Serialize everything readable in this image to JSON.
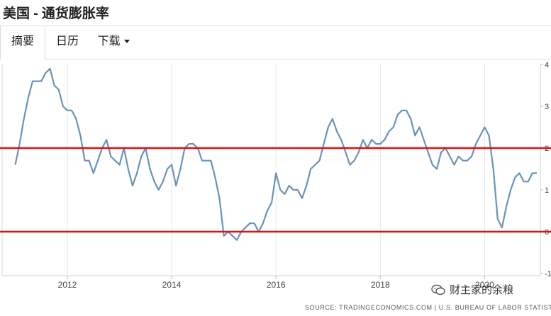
{
  "page": {
    "title": "美国 - 通货膨胀率",
    "tabs": [
      {
        "label": "摘要",
        "active": true
      },
      {
        "label": "日历",
        "active": false
      },
      {
        "label": "下载",
        "active": false
      }
    ],
    "source": "SOURCE: TRADINGECONOMICS.COM | U.S. BUREAU OF LABOR STATISTICS",
    "watermark": "财主家的余粮"
  },
  "colors": {
    "line": "#6a93b8",
    "reference_line": "#e01010",
    "grid": "#e6e6e6"
  },
  "chart_data": {
    "type": "line",
    "title": "",
    "xlabel": "",
    "ylabel": "",
    "x_tick_labels": [
      "2012",
      "2014",
      "2016",
      "2018",
      "2020"
    ],
    "y_tick_labels": [
      "-1",
      "0",
      "1",
      "2",
      "3",
      "4"
    ],
    "ylim": [
      -1,
      4
    ],
    "xlim": [
      "2011-01",
      "2020-07"
    ],
    "grid": "vertical",
    "reference_lines": [
      2,
      0
    ],
    "series": [
      {
        "values": [
          [
            "2011-01",
            1.6
          ],
          [
            "2011-02",
            2.1
          ],
          [
            "2011-03",
            2.7
          ],
          [
            "2011-04",
            3.2
          ],
          [
            "2011-05",
            3.6
          ],
          [
            "2011-06",
            3.6
          ],
          [
            "2011-07",
            3.6
          ],
          [
            "2011-08",
            3.8
          ],
          [
            "2011-09",
            3.9
          ],
          [
            "2011-10",
            3.5
          ],
          [
            "2011-11",
            3.4
          ],
          [
            "2011-12",
            3.0
          ],
          [
            "2012-01",
            2.9
          ],
          [
            "2012-02",
            2.9
          ],
          [
            "2012-03",
            2.7
          ],
          [
            "2012-04",
            2.3
          ],
          [
            "2012-05",
            1.7
          ],
          [
            "2012-06",
            1.7
          ],
          [
            "2012-07",
            1.4
          ],
          [
            "2012-08",
            1.7
          ],
          [
            "2012-09",
            2.0
          ],
          [
            "2012-10",
            2.2
          ],
          [
            "2012-11",
            1.8
          ],
          [
            "2012-12",
            1.7
          ],
          [
            "2013-01",
            1.6
          ],
          [
            "2013-02",
            2.0
          ],
          [
            "2013-03",
            1.5
          ],
          [
            "2013-04",
            1.1
          ],
          [
            "2013-05",
            1.4
          ],
          [
            "2013-06",
            1.8
          ],
          [
            "2013-07",
            2.0
          ],
          [
            "2013-08",
            1.5
          ],
          [
            "2013-09",
            1.2
          ],
          [
            "2013-10",
            1.0
          ],
          [
            "2013-11",
            1.2
          ],
          [
            "2013-12",
            1.5
          ],
          [
            "2014-01",
            1.6
          ],
          [
            "2014-02",
            1.1
          ],
          [
            "2014-03",
            1.5
          ],
          [
            "2014-04",
            2.0
          ],
          [
            "2014-05",
            2.1
          ],
          [
            "2014-06",
            2.1
          ],
          [
            "2014-07",
            2.0
          ],
          [
            "2014-08",
            1.7
          ],
          [
            "2014-09",
            1.7
          ],
          [
            "2014-10",
            1.7
          ],
          [
            "2014-11",
            1.3
          ],
          [
            "2014-12",
            0.8
          ],
          [
            "2015-01",
            -0.1
          ],
          [
            "2015-02",
            0.0
          ],
          [
            "2015-03",
            -0.1
          ],
          [
            "2015-04",
            -0.2
          ],
          [
            "2015-05",
            0.0
          ],
          [
            "2015-06",
            0.1
          ],
          [
            "2015-07",
            0.2
          ],
          [
            "2015-08",
            0.2
          ],
          [
            "2015-09",
            0.0
          ],
          [
            "2015-10",
            0.2
          ],
          [
            "2015-11",
            0.5
          ],
          [
            "2015-12",
            0.7
          ],
          [
            "2016-01",
            1.4
          ],
          [
            "2016-02",
            1.0
          ],
          [
            "2016-03",
            0.9
          ],
          [
            "2016-04",
            1.1
          ],
          [
            "2016-05",
            1.0
          ],
          [
            "2016-06",
            1.0
          ],
          [
            "2016-07",
            0.8
          ],
          [
            "2016-08",
            1.1
          ],
          [
            "2016-09",
            1.5
          ],
          [
            "2016-10",
            1.6
          ],
          [
            "2016-11",
            1.7
          ],
          [
            "2016-12",
            2.1
          ],
          [
            "2017-01",
            2.5
          ],
          [
            "2017-02",
            2.7
          ],
          [
            "2017-03",
            2.4
          ],
          [
            "2017-04",
            2.2
          ],
          [
            "2017-05",
            1.9
          ],
          [
            "2017-06",
            1.6
          ],
          [
            "2017-07",
            1.7
          ],
          [
            "2017-08",
            1.9
          ],
          [
            "2017-09",
            2.2
          ],
          [
            "2017-10",
            2.0
          ],
          [
            "2017-11",
            2.2
          ],
          [
            "2017-12",
            2.1
          ],
          [
            "2018-01",
            2.1
          ],
          [
            "2018-02",
            2.2
          ],
          [
            "2018-03",
            2.4
          ],
          [
            "2018-04",
            2.5
          ],
          [
            "2018-05",
            2.8
          ],
          [
            "2018-06",
            2.9
          ],
          [
            "2018-07",
            2.9
          ],
          [
            "2018-08",
            2.7
          ],
          [
            "2018-09",
            2.3
          ],
          [
            "2018-10",
            2.5
          ],
          [
            "2018-11",
            2.2
          ],
          [
            "2018-12",
            1.9
          ],
          [
            "2019-01",
            1.6
          ],
          [
            "2019-02",
            1.5
          ],
          [
            "2019-03",
            1.9
          ],
          [
            "2019-04",
            2.0
          ],
          [
            "2019-05",
            1.8
          ],
          [
            "2019-06",
            1.6
          ],
          [
            "2019-07",
            1.8
          ],
          [
            "2019-08",
            1.7
          ],
          [
            "2019-09",
            1.7
          ],
          [
            "2019-10",
            1.8
          ],
          [
            "2019-11",
            2.1
          ],
          [
            "2019-12",
            2.3
          ],
          [
            "2020-01",
            2.5
          ],
          [
            "2020-02",
            2.3
          ],
          [
            "2020-03",
            1.5
          ],
          [
            "2020-04",
            0.3
          ],
          [
            "2020-05",
            0.1
          ],
          [
            "2020-06",
            0.6
          ],
          [
            "2020-07",
            1.0
          ],
          [
            "2020-08",
            1.3
          ],
          [
            "2020-09",
            1.4
          ],
          [
            "2020-10",
            1.2
          ],
          [
            "2020-11",
            1.2
          ],
          [
            "2020-12",
            1.4
          ],
          [
            "2021-01",
            1.4
          ]
        ]
      }
    ]
  }
}
